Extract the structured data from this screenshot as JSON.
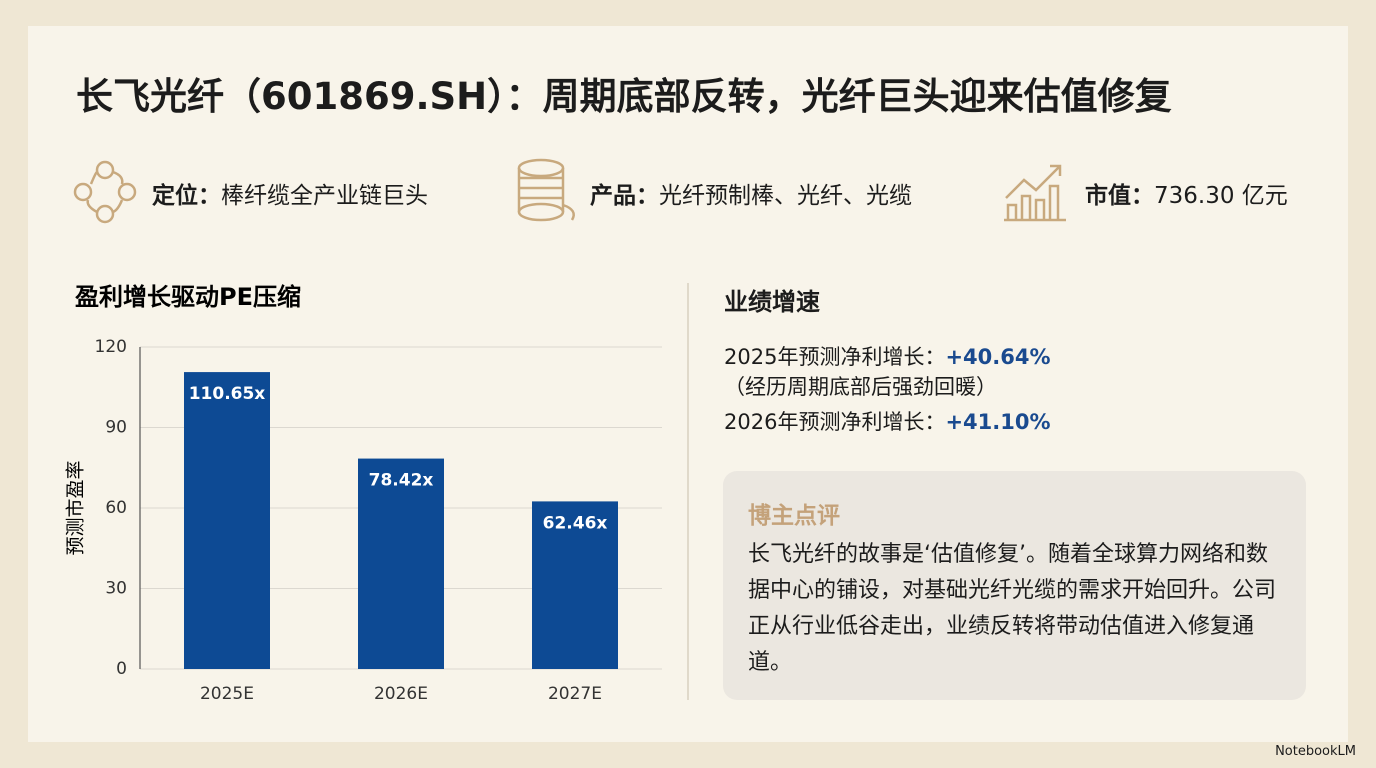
{
  "header": {
    "title": "长飞光纤（601869.SH）：周期底部反转，光纤巨头迎来估值修复"
  },
  "info": [
    {
      "label": "定位：",
      "value": "棒纤缆全产业链巨头"
    },
    {
      "label": "产品：",
      "value": "光纤预制棒、光纤、光缆"
    },
    {
      "label": "市值：",
      "value": "736.30 亿元"
    }
  ],
  "chart_data": {
    "type": "bar",
    "title": "盈利增长驱动PE压缩",
    "y_label": "预测市盈率",
    "categories": [
      "2025E",
      "2026E",
      "2027E"
    ],
    "values": [
      110.65,
      78.42,
      62.46
    ],
    "value_labels": [
      "110.65x",
      "78.42x",
      "62.46x"
    ],
    "color": "#0d4a94",
    "ylim": [
      0,
      120
    ],
    "yticks": [
      0,
      30,
      60,
      90,
      120
    ],
    "grid": true
  },
  "growth": {
    "title": "业绩增速",
    "items": [
      {
        "label": "2025年预测净利增长：",
        "value": "+40.64%",
        "note": "（经历周期底部后强劲回暖）"
      },
      {
        "label": "2026年预测净利增长：",
        "value": "+41.10%"
      }
    ]
  },
  "comment": {
    "title": "博主点评",
    "body": "长飞光纤的故事是‘估值修复’。随着全球算力网络和数据中心的铺设，对基础光纤光缆的需求开始回升。公司正从行业低谷走出，业绩反转将带动估值进入修复通道。"
  },
  "footer": {
    "brand": "NotebookLM"
  }
}
